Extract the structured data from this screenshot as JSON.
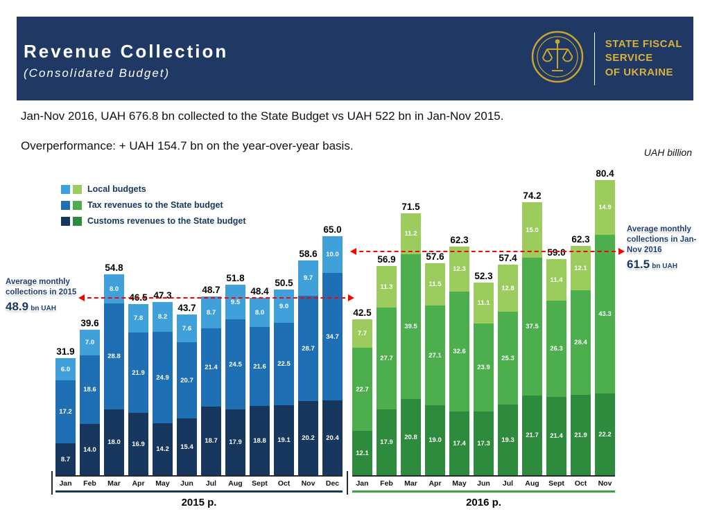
{
  "header": {
    "title": "Revenue Collection",
    "subtitle": "(Consolidated Budget)",
    "org_name_lines": [
      "STATE FISCAL",
      "SERVICE",
      "OF UKRAINE"
    ]
  },
  "intro": {
    "line1": "Jan-Nov 2016, UAH 676.8 bn collected to the State Budget vs UAH 522 bn in Jan-Nov 2015.",
    "line2": "Overperformance: + UAH 154.7 bn on the year-over-year basis."
  },
  "chart_data": {
    "type": "bar",
    "stacked": true,
    "unit_label": "UAH billion",
    "legend_position": "top-left",
    "legend": [
      {
        "label": "Local budgets",
        "colors": [
          "#3fa0da",
          "#9ccb5e"
        ]
      },
      {
        "label": "Tax revenues to the State budget",
        "colors": [
          "#1f6fb5",
          "#4cae4c"
        ]
      },
      {
        "label": "Customs revenues to the State budget",
        "colors": [
          "#17375e",
          "#2e8b3e"
        ]
      }
    ],
    "groups": [
      {
        "year_label": "2015 р.",
        "months": [
          "Jan",
          "Feb",
          "Mar",
          "Apr",
          "May",
          "Jun",
          "Jul",
          "Aug",
          "Sept",
          "Oct",
          "Nov",
          "Dec"
        ],
        "totals": [
          31.9,
          39.6,
          54.8,
          46.5,
          47.3,
          43.7,
          48.7,
          51.8,
          48.4,
          50.5,
          58.6,
          65.0
        ],
        "series": [
          {
            "key": "customs",
            "name": "Customs revenues to the State budget",
            "color": "#17375e",
            "values": [
              8.7,
              14.0,
              18.0,
              16.9,
              14.2,
              15.4,
              18.7,
              17.9,
              18.8,
              19.1,
              20.2,
              20.4
            ]
          },
          {
            "key": "tax",
            "name": "Tax revenues to the State budget",
            "color": "#1f6fb5",
            "values": [
              17.2,
              18.6,
              28.8,
              21.9,
              24.9,
              20.7,
              21.4,
              24.5,
              21.6,
              22.5,
              28.7,
              34.7
            ]
          },
          {
            "key": "local",
            "name": "Local budgets",
            "color": "#3fa0da",
            "values": [
              6.0,
              7.0,
              8.0,
              7.8,
              8.2,
              7.6,
              8.7,
              9.5,
              8.0,
              9.0,
              9.7,
              10.0
            ]
          }
        ]
      },
      {
        "year_label": "2016 р.",
        "months": [
          "Jan",
          "Feb",
          "Mar",
          "Apr",
          "May",
          "Jun",
          "Jul",
          "Aug",
          "Sept",
          "Oct",
          "Nov"
        ],
        "totals": [
          42.5,
          56.9,
          71.5,
          57.6,
          62.3,
          52.3,
          57.4,
          74.2,
          59.0,
          62.3,
          80.4
        ],
        "series": [
          {
            "key": "customs",
            "name": "Customs revenues to the State budget",
            "color": "#2e8b3e",
            "values": [
              12.1,
              17.9,
              20.8,
              19.0,
              17.4,
              17.3,
              19.3,
              21.7,
              21.4,
              21.9,
              22.2
            ]
          },
          {
            "key": "tax",
            "name": "Tax revenues to the State budget",
            "color": "#4cae4c",
            "values": [
              22.7,
              27.7,
              39.5,
              27.1,
              32.6,
              23.9,
              25.3,
              37.5,
              26.3,
              28.4,
              43.3
            ]
          },
          {
            "key": "local",
            "name": "Local budgets",
            "color": "#9ccb5e",
            "values": [
              7.7,
              11.3,
              11.2,
              11.5,
              12.3,
              11.1,
              12.8,
              15.0,
              11.4,
              12.1,
              14.9
            ]
          }
        ]
      }
    ],
    "average_lines": [
      {
        "label": "Average monthly collections in 2015",
        "value": 48.9,
        "value_label": "48.9",
        "unit": "bn UAH"
      },
      {
        "label": "Average monthly collections in Jan-Nov 2016",
        "value": 61.5,
        "value_label": "61.5",
        "unit": "bn UAH"
      }
    ]
  }
}
